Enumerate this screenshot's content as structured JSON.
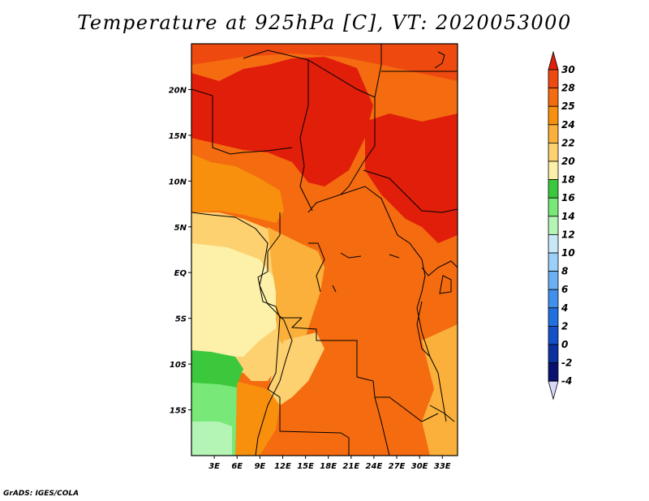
{
  "title": "Temperature at 925hPa [C], VT: 2020053000",
  "credit": "GrADS: IGES/COLA",
  "map": {
    "lat_labels": [
      "20N",
      "15N",
      "10N",
      "5N",
      "EQ",
      "5S",
      "10S",
      "15S"
    ],
    "lat_values": [
      20,
      15,
      10,
      5,
      0,
      -5,
      -10,
      -15
    ],
    "lon_labels": [
      "3E",
      "6E",
      "9E",
      "12E",
      "15E",
      "18E",
      "21E",
      "24E",
      "27E",
      "30E",
      "33E"
    ],
    "lon_values": [
      3,
      6,
      9,
      12,
      15,
      18,
      21,
      24,
      27,
      30,
      33
    ],
    "lon_range": [
      0,
      35
    ],
    "lat_range": [
      -20,
      25
    ]
  },
  "colorbar": {
    "labels": [
      "30",
      "28",
      "25",
      "24",
      "22",
      "20",
      "18",
      "16",
      "14",
      "12",
      "10",
      "8",
      "6",
      "4",
      "2",
      "0",
      "-2",
      "-4"
    ],
    "colors": [
      "#e01e0a",
      "#ee4a10",
      "#f46b10",
      "#f8900e",
      "#fab03a",
      "#fdd070",
      "#fdf0a8",
      "#3cc83c",
      "#78e878",
      "#b4f4b4",
      "#c8e8f8",
      "#9cd0f8",
      "#6cb0f4",
      "#4090ec",
      "#2070e0",
      "#1450c8",
      "#0c30a0",
      "#0a1070"
    ],
    "top_arrow_color": "#e01e0a",
    "bottom_arrow_color": "#d8d8f8"
  }
}
